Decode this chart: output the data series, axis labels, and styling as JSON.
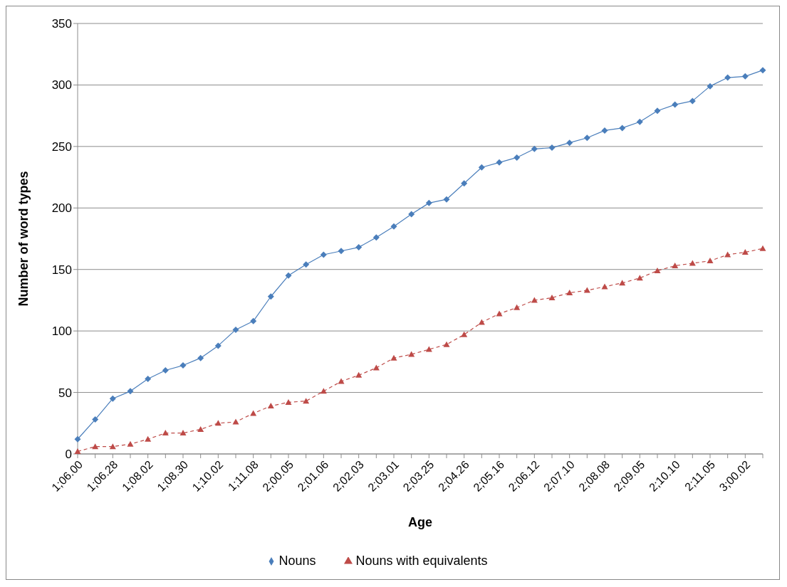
{
  "chart_data": {
    "type": "line",
    "xlabel": "Age",
    "ylabel": "Number of word types",
    "categories": [
      "1;06.00",
      null,
      "1;06.28",
      null,
      "1;08.02",
      null,
      "1;08.30",
      null,
      "1;10.02",
      null,
      "1;11.08",
      null,
      "2;00.05",
      null,
      "2;01.06",
      null,
      "2;02.03",
      null,
      "2;03.01",
      null,
      "2;03.25",
      null,
      "2;04.26",
      null,
      "2;05.16",
      null,
      "2;06.12",
      null,
      "2;07.10",
      null,
      "2;08.08",
      null,
      "2;09.05",
      null,
      "2;10.10",
      null,
      "2;11.05",
      null,
      "3;00.02",
      null
    ],
    "series": [
      {
        "name": "Nouns",
        "color": "#4a7ebb",
        "marker": "diamond",
        "line_style": "solid",
        "values": [
          12,
          28,
          45,
          51,
          61,
          68,
          72,
          78,
          88,
          101,
          108,
          128,
          145,
          154,
          162,
          165,
          168,
          176,
          185,
          195,
          204,
          207,
          220,
          233,
          237,
          241,
          248,
          249,
          253,
          257,
          263,
          265,
          270,
          279,
          284,
          287,
          299,
          306,
          307,
          312
        ]
      },
      {
        "name": "Nouns with equivalents",
        "color": "#be4b48",
        "marker": "triangle",
        "line_style": "dashed",
        "values": [
          2,
          6,
          6,
          8,
          12,
          17,
          17,
          20,
          25,
          26,
          33,
          39,
          42,
          43,
          51,
          59,
          64,
          70,
          78,
          81,
          85,
          89,
          97,
          107,
          114,
          119,
          125,
          127,
          131,
          133,
          136,
          139,
          143,
          149,
          153,
          155,
          157,
          162,
          164,
          167
        ]
      }
    ],
    "ylim": [
      0,
      350
    ],
    "yticks": [
      0,
      50,
      100,
      150,
      200,
      250,
      300,
      350
    ],
    "grid": "y",
    "legend": "bottom"
  }
}
